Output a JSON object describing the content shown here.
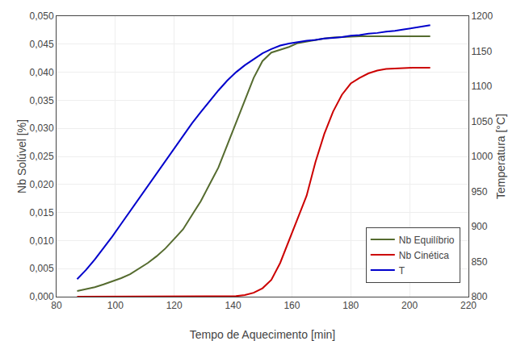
{
  "chart_data": {
    "type": "line",
    "xlabel": "Tempo de Aquecimento [min]",
    "ylabel": "Nb Solúvel [%]",
    "y2label": "Temperatura [°C]",
    "x": [
      87,
      90,
      93,
      96,
      99,
      102,
      105,
      108,
      111,
      114,
      117,
      120,
      123,
      126,
      129,
      132,
      135,
      138,
      141,
      144,
      147,
      150,
      153,
      156,
      159,
      162,
      165,
      168,
      171,
      174,
      177,
      180,
      183,
      186,
      189,
      192,
      195,
      198,
      201,
      204,
      207
    ],
    "series": [
      {
        "name": "Nb Equilíbrio",
        "color": "#556B2F",
        "values": [
          0.001,
          0.0013,
          0.0017,
          0.0022,
          0.0027,
          0.0033,
          0.004,
          0.005,
          0.006,
          0.0072,
          0.0086,
          0.0103,
          0.012,
          0.0145,
          0.017,
          0.02,
          0.023,
          0.027,
          0.031,
          0.035,
          0.039,
          0.042,
          0.0435,
          0.044,
          0.0445,
          0.0452,
          0.0455,
          0.0458,
          0.046,
          0.0462,
          0.0463,
          0.0464,
          0.0464,
          0.0464,
          0.0464,
          0.0464,
          0.0464,
          0.0464,
          0.0464,
          0.0464,
          0.0464
        ]
      },
      {
        "name": "Nb Cinética",
        "color": "#cc0000",
        "values": [
          0.0,
          0.0,
          0.0,
          0.0,
          0.0,
          0.0,
          0.0,
          0.0,
          0.0,
          0.0,
          0.0,
          0.0,
          0.0,
          0.0,
          0.0,
          0.0,
          0.0,
          0.0,
          0.0001,
          0.0003,
          0.0007,
          0.0015,
          0.003,
          0.006,
          0.01,
          0.014,
          0.018,
          0.024,
          0.029,
          0.033,
          0.036,
          0.038,
          0.039,
          0.0398,
          0.0403,
          0.0406,
          0.0407,
          0.0408,
          0.0408,
          0.0408,
          0.0408
        ]
      },
      {
        "name": "T",
        "color": "#0000cc",
        "axis": "y2",
        "values": [
          825,
          838,
          853,
          869,
          886,
          904,
          922,
          940,
          958,
          976,
          994,
          1012,
          1030,
          1047,
          1063,
          1079,
          1094,
          1108,
          1120,
          1130,
          1139,
          1147,
          1153,
          1158,
          1161,
          1163,
          1165,
          1166,
          1168,
          1169,
          1170,
          1172,
          1173,
          1175,
          1176,
          1178,
          1179,
          1181,
          1183,
          1185,
          1187
        ]
      }
    ],
    "xlim": [
      80,
      220
    ],
    "xticks": [
      80,
      100,
      120,
      140,
      160,
      180,
      200,
      220
    ],
    "ylim": [
      0.0,
      0.05
    ],
    "yticks": [
      {
        "value": 0.0,
        "label": "0,000"
      },
      {
        "value": 0.005,
        "label": "0,005"
      },
      {
        "value": 0.01,
        "label": "0,010"
      },
      {
        "value": 0.015,
        "label": "0,015"
      },
      {
        "value": 0.02,
        "label": "0,020"
      },
      {
        "value": 0.025,
        "label": "0,025"
      },
      {
        "value": 0.03,
        "label": "0,030"
      },
      {
        "value": 0.035,
        "label": "0,035"
      },
      {
        "value": 0.04,
        "label": "0,040"
      },
      {
        "value": 0.045,
        "label": "0,045"
      },
      {
        "value": 0.05,
        "label": "0,050"
      }
    ],
    "y2lim": [
      800,
      1200
    ],
    "y2ticks": [
      800,
      850,
      900,
      950,
      1000,
      1050,
      1100,
      1150,
      1200
    ],
    "grid": true,
    "legend": "lower right"
  }
}
